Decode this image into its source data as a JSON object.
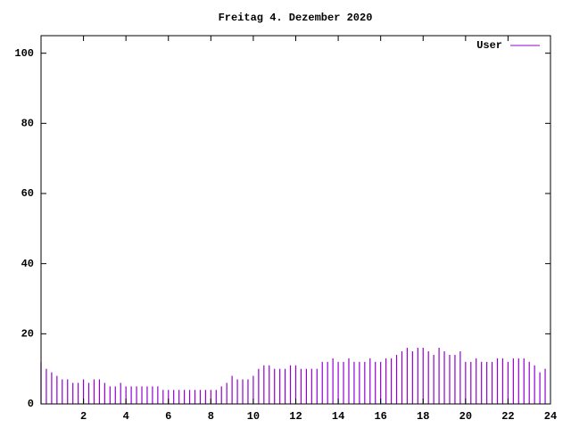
{
  "chart_data": {
    "type": "impulses",
    "title": "Freitag 4. Dezember 2020",
    "x": [
      0,
      0.25,
      0.5,
      0.75,
      1,
      1.25,
      1.5,
      1.75,
      2,
      2.25,
      2.5,
      2.75,
      3,
      3.25,
      3.5,
      3.75,
      4,
      4.25,
      4.5,
      4.75,
      5,
      5.25,
      5.5,
      5.75,
      6,
      6.25,
      6.5,
      6.75,
      7,
      7.25,
      7.5,
      7.75,
      8,
      8.25,
      8.5,
      8.75,
      9,
      9.25,
      9.5,
      9.75,
      10,
      10.25,
      10.5,
      10.75,
      11,
      11.25,
      11.5,
      11.75,
      12,
      12.25,
      12.5,
      12.75,
      13,
      13.25,
      13.5,
      13.75,
      14,
      14.25,
      14.5,
      14.75,
      15,
      15.25,
      15.5,
      15.75,
      16,
      16.25,
      16.5,
      16.75,
      17,
      17.25,
      17.5,
      17.75,
      18,
      18.25,
      18.5,
      18.75,
      19,
      19.25,
      19.5,
      19.75,
      20,
      20.25,
      20.5,
      20.75,
      21,
      21.25,
      21.5,
      21.75,
      22,
      22.25,
      22.5,
      22.75,
      23,
      23.25,
      23.5,
      23.75
    ],
    "series": [
      {
        "name": "User",
        "color": "#9400d3",
        "values": [
          12,
          10,
          9,
          8,
          7,
          7,
          6,
          6,
          7,
          6,
          7,
          7,
          6,
          5,
          5,
          6,
          5,
          5,
          5,
          5,
          5,
          5,
          5,
          4,
          4,
          4,
          4,
          4,
          4,
          4,
          4,
          4,
          4,
          4,
          5,
          6,
          8,
          7,
          7,
          7,
          8,
          10,
          11,
          11,
          10,
          10,
          10,
          11,
          11,
          10,
          10,
          10,
          10,
          12,
          12,
          13,
          12,
          12,
          13,
          12,
          12,
          12,
          13,
          12,
          12,
          13,
          13,
          14,
          15,
          16,
          15,
          16,
          16,
          15,
          14,
          16,
          15,
          14,
          14,
          15,
          12,
          12,
          13,
          12,
          12,
          12,
          13,
          13,
          12,
          13,
          13,
          13,
          12,
          11,
          9,
          10
        ]
      }
    ],
    "xlim": [
      0,
      24
    ],
    "xticks": [
      2,
      4,
      6,
      8,
      10,
      12,
      14,
      16,
      18,
      20,
      22,
      24
    ],
    "ylim": [
      0,
      105
    ],
    "yticks": [
      0,
      20,
      40,
      60,
      80,
      100
    ]
  }
}
